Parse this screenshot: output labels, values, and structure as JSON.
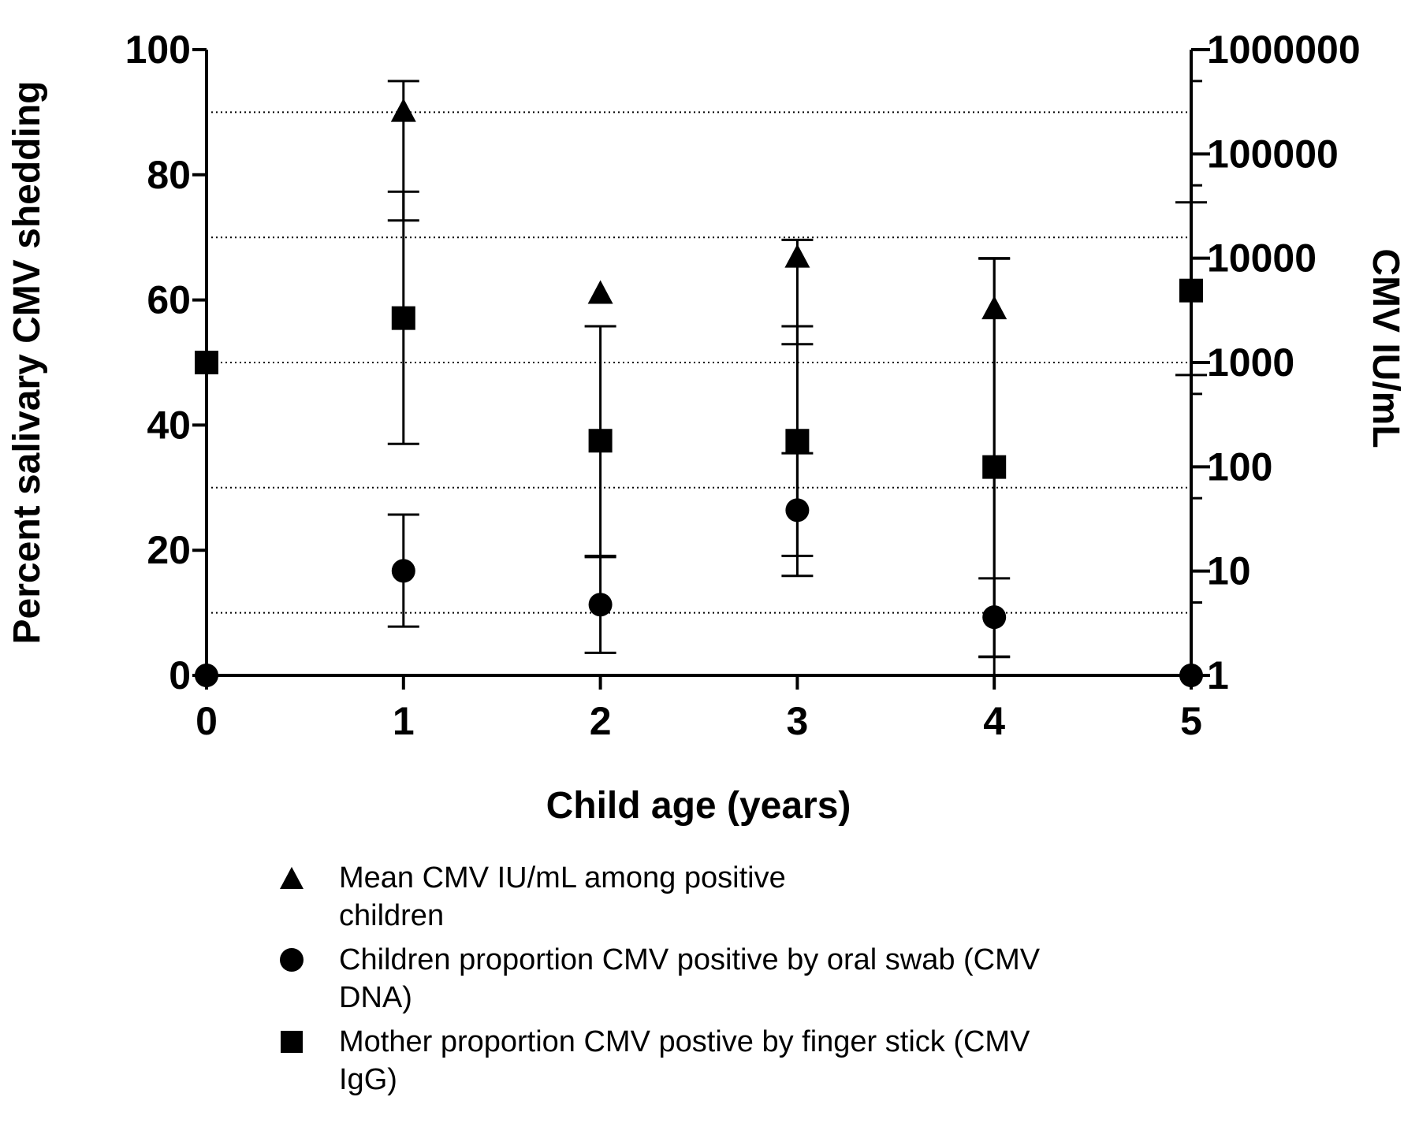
{
  "chart_data": {
    "type": "scatter",
    "xlabel": "Child age (years)",
    "ylabel_left": "Percent salivary CMV shedding",
    "ylabel_right": "CMV IU/mL",
    "x_ticks": [
      "0",
      "1",
      "2",
      "3",
      "4",
      "5"
    ],
    "xlim": [
      0,
      5
    ],
    "y_left_ticks": [
      "0",
      "20",
      "40",
      "60",
      "80",
      "100"
    ],
    "ylim_left": [
      0,
      100
    ],
    "y_right_ticks": [
      "1",
      "10",
      "100",
      "1000",
      "10000",
      "100000",
      "1000000"
    ],
    "ylim_right": [
      1,
      1000000
    ],
    "y_right_scale": "log",
    "grid": "dotted horizontal lines at left-axis 10, 30, 50, 70, 90",
    "grid_left_values": [
      10,
      30,
      50,
      70,
      90
    ],
    "legend_placement": "bottom",
    "series": [
      {
        "name": "Mean CMV IU/mL among positive children",
        "marker": "triangle",
        "axis": "right",
        "points": [
          {
            "x": 1,
            "y": 250000,
            "err_low": 23000,
            "err_high": 500000
          },
          {
            "x": 2,
            "y": 4500
          },
          {
            "x": 3,
            "y": 10000,
            "err_low": 1500,
            "err_high": 15000
          },
          {
            "x": 4,
            "y": 3200,
            "err_low": 1.5,
            "err_high": 10000
          }
        ]
      },
      {
        "name": "Children proportion CMV positive by oral swab (CMV DNA)",
        "marker": "circle",
        "axis": "left",
        "points": [
          {
            "x": 0,
            "y": 0
          },
          {
            "x": 1,
            "y": 16.7,
            "err_low": 7.8,
            "err_high": 25.7
          },
          {
            "x": 2,
            "y": 11.3,
            "err_low": 3.6,
            "err_high": 18.9
          },
          {
            "x": 3,
            "y": 26.4,
            "err_low": 15.9,
            "err_high": 35.5
          },
          {
            "x": 4,
            "y": 9.3,
            "err_low": 3.0,
            "err_high": 15.5
          },
          {
            "x": 5,
            "y": 0
          }
        ]
      },
      {
        "name": "Mother proportion CMV postive by finger stick (CMV IgG)",
        "marker": "square",
        "axis": "left",
        "points": [
          {
            "x": 0,
            "y": 50
          },
          {
            "x": 1,
            "y": 57.1,
            "err_low": 37.0,
            "err_high": 77.3
          },
          {
            "x": 2,
            "y": 37.5,
            "err_low": 19.1,
            "err_high": 55.8
          },
          {
            "x": 3,
            "y": 37.5,
            "err_low": 19.1,
            "err_high": 55.8
          },
          {
            "x": 4,
            "y": 33.3,
            "err_low": 0,
            "err_high": 66.6
          },
          {
            "x": 5,
            "y": 61.5,
            "err_low": 48.0,
            "err_high": 75.6
          }
        ]
      }
    ]
  },
  "legend": {
    "items": [
      {
        "symbol": "triangle",
        "label_line1": "Mean CMV IU/mL among positive",
        "label_line2": "children"
      },
      {
        "symbol": "circle",
        "label_line1": "Children proportion CMV positive by oral swab (CMV",
        "label_line2": "DNA)"
      },
      {
        "symbol": "square",
        "label_line1": "Mother proportion CMV postive by finger stick (CMV",
        "label_line2": "IgG)"
      }
    ]
  }
}
